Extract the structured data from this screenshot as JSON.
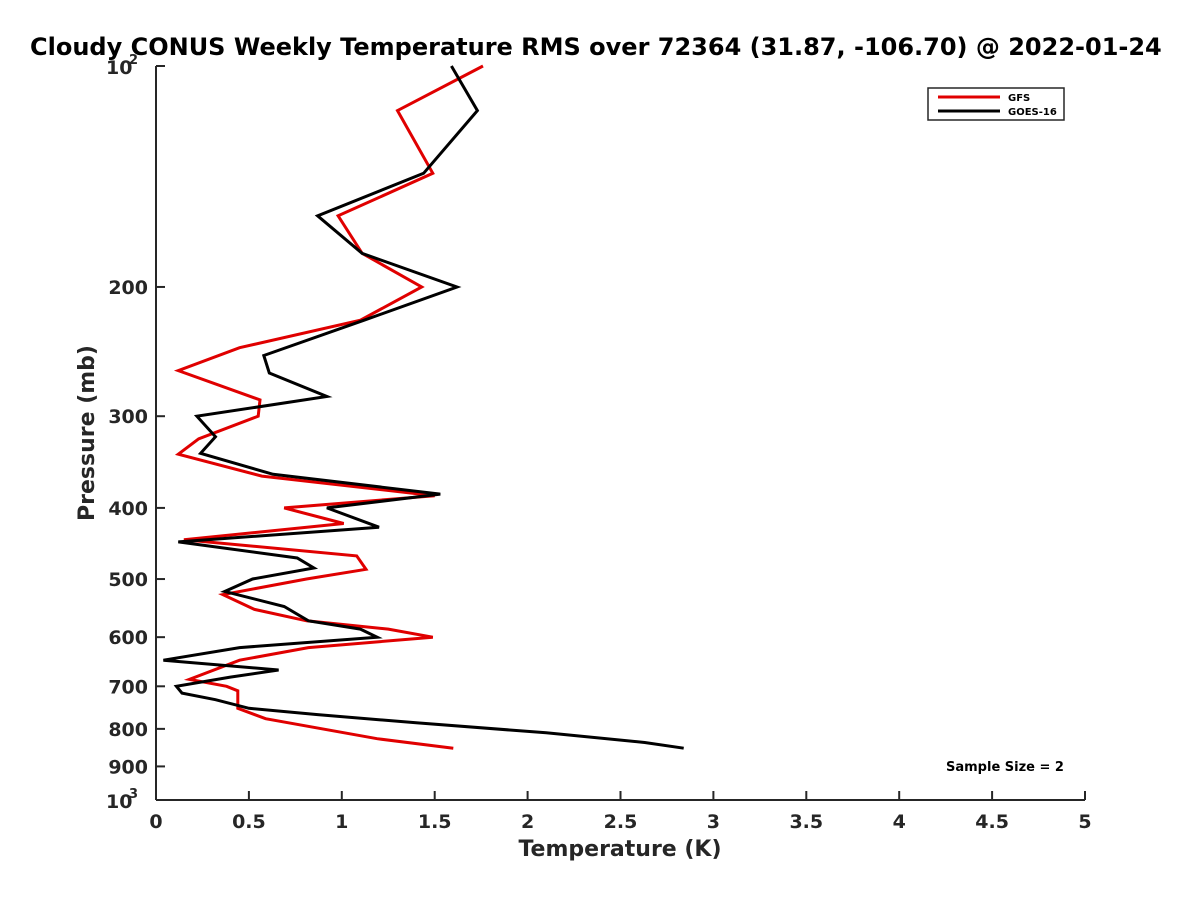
{
  "chart_data": {
    "type": "line",
    "title": "Cloudy CONUS Weekly Temperature RMS over 72364 (31.87, -106.70) @ 2022-01-24",
    "xlabel": "Temperature (K)",
    "ylabel": "Pressure (mb)",
    "xlim": [
      0,
      5
    ],
    "ylim": [
      100,
      1000
    ],
    "y_scale": "log",
    "y_reversed": true,
    "x_ticks": [
      "0",
      "0.5",
      "1",
      "1.5",
      "2",
      "2.5",
      "3",
      "3.5",
      "4",
      "4.5",
      "5"
    ],
    "y_ticks": [
      {
        "value": 100,
        "base": "10",
        "exp": "2"
      },
      {
        "value": 200,
        "label": "200"
      },
      {
        "value": 300,
        "label": "300"
      },
      {
        "value": 400,
        "label": "400"
      },
      {
        "value": 500,
        "label": "500"
      },
      {
        "value": 600,
        "label": "600"
      },
      {
        "value": 700,
        "label": "700"
      },
      {
        "value": 800,
        "label": "800"
      },
      {
        "value": 900,
        "label": "900"
      },
      {
        "value": 1000,
        "base": "10",
        "exp": "3"
      }
    ],
    "grid": false,
    "legend_position": "top-right",
    "annotation": "Sample Size = 2",
    "series": [
      {
        "name": "GFS",
        "color": "#e00000",
        "points": [
          {
            "x": 1.76,
            "p": 100
          },
          {
            "x": 1.3,
            "p": 115
          },
          {
            "x": 1.49,
            "p": 140
          },
          {
            "x": 0.98,
            "p": 160
          },
          {
            "x": 1.11,
            "p": 180
          },
          {
            "x": 1.43,
            "p": 200
          },
          {
            "x": 1.1,
            "p": 222
          },
          {
            "x": 0.45,
            "p": 242
          },
          {
            "x": 0.12,
            "p": 260
          },
          {
            "x": 0.56,
            "p": 285
          },
          {
            "x": 0.55,
            "p": 300
          },
          {
            "x": 0.23,
            "p": 322
          },
          {
            "x": 0.12,
            "p": 338
          },
          {
            "x": 0.57,
            "p": 362
          },
          {
            "x": 1.5,
            "p": 385
          },
          {
            "x": 0.69,
            "p": 400
          },
          {
            "x": 1.01,
            "p": 420
          },
          {
            "x": 0.15,
            "p": 442
          },
          {
            "x": 1.08,
            "p": 465
          },
          {
            "x": 1.13,
            "p": 485
          },
          {
            "x": 0.81,
            "p": 500
          },
          {
            "x": 0.36,
            "p": 525
          },
          {
            "x": 0.53,
            "p": 550
          },
          {
            "x": 0.81,
            "p": 570
          },
          {
            "x": 1.25,
            "p": 585
          },
          {
            "x": 1.49,
            "p": 600
          },
          {
            "x": 0.82,
            "p": 620
          },
          {
            "x": 0.45,
            "p": 645
          },
          {
            "x": 0.18,
            "p": 685
          },
          {
            "x": 0.38,
            "p": 700
          },
          {
            "x": 0.44,
            "p": 710
          },
          {
            "x": 0.44,
            "p": 750
          },
          {
            "x": 0.59,
            "p": 775
          },
          {
            "x": 1.19,
            "p": 825
          },
          {
            "x": 1.6,
            "p": 850
          }
        ]
      },
      {
        "name": "GOES-16",
        "color": "#000000",
        "points": [
          {
            "x": 1.59,
            "p": 100
          },
          {
            "x": 1.73,
            "p": 115
          },
          {
            "x": 1.44,
            "p": 140
          },
          {
            "x": 0.87,
            "p": 160
          },
          {
            "x": 1.11,
            "p": 180
          },
          {
            "x": 1.62,
            "p": 200
          },
          {
            "x": 1.12,
            "p": 222
          },
          {
            "x": 0.58,
            "p": 248
          },
          {
            "x": 0.61,
            "p": 262
          },
          {
            "x": 0.92,
            "p": 282
          },
          {
            "x": 0.22,
            "p": 300
          },
          {
            "x": 0.32,
            "p": 320
          },
          {
            "x": 0.24,
            "p": 337
          },
          {
            "x": 0.63,
            "p": 360
          },
          {
            "x": 1.53,
            "p": 383
          },
          {
            "x": 0.92,
            "p": 400
          },
          {
            "x": 1.2,
            "p": 425
          },
          {
            "x": 0.12,
            "p": 445
          },
          {
            "x": 0.76,
            "p": 468
          },
          {
            "x": 0.85,
            "p": 483
          },
          {
            "x": 0.52,
            "p": 500
          },
          {
            "x": 0.37,
            "p": 520
          },
          {
            "x": 0.69,
            "p": 545
          },
          {
            "x": 0.82,
            "p": 570
          },
          {
            "x": 1.1,
            "p": 585
          },
          {
            "x": 1.19,
            "p": 600
          },
          {
            "x": 0.45,
            "p": 620
          },
          {
            "x": 0.04,
            "p": 645
          },
          {
            "x": 0.66,
            "p": 665
          },
          {
            "x": 0.4,
            "p": 680
          },
          {
            "x": 0.11,
            "p": 700
          },
          {
            "x": 0.14,
            "p": 715
          },
          {
            "x": 0.32,
            "p": 730
          },
          {
            "x": 0.5,
            "p": 750
          },
          {
            "x": 0.87,
            "p": 765
          },
          {
            "x": 1.4,
            "p": 785
          },
          {
            "x": 2.1,
            "p": 810
          },
          {
            "x": 2.63,
            "p": 835
          },
          {
            "x": 2.84,
            "p": 850
          }
        ]
      }
    ]
  }
}
